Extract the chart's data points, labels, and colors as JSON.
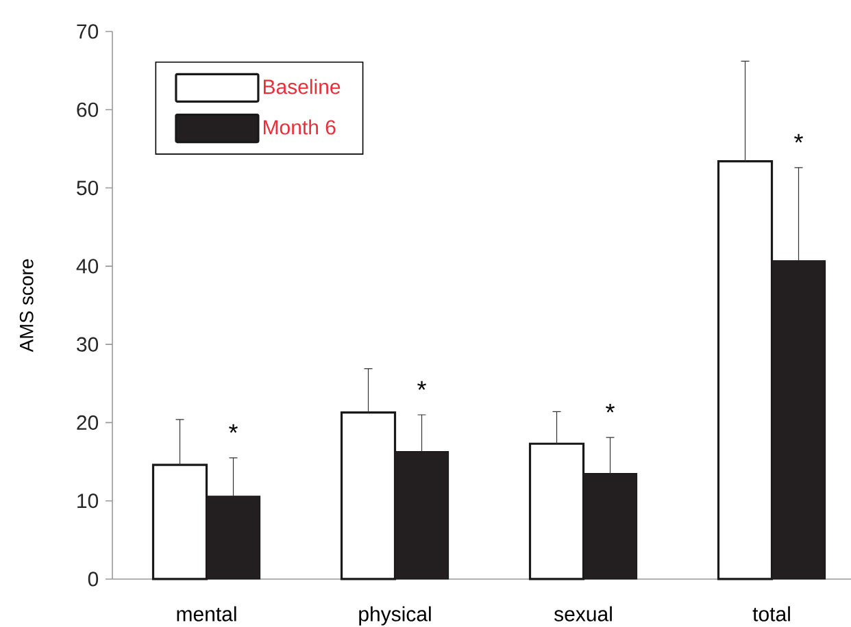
{
  "chart_data": {
    "type": "bar",
    "categories": [
      "mental",
      "physical",
      "sexual",
      "total"
    ],
    "ylabel": "AMS score",
    "ylim": [
      0,
      70
    ],
    "yticks": [
      0,
      10,
      20,
      30,
      40,
      50,
      60,
      70
    ],
    "legend": "top left",
    "grid": false,
    "series": [
      {
        "name": "Baseline",
        "color": "#ffffff",
        "values": [
          14.6,
          21.3,
          17.3,
          53.4
        ],
        "errors": [
          [
            14.6,
            20.4
          ],
          [
            21.3,
            26.9
          ],
          [
            17.3,
            21.4
          ],
          [
            53.4,
            66.2
          ]
        ]
      },
      {
        "name": "Month 6",
        "color": "#231f20",
        "values": [
          10.6,
          16.3,
          13.5,
          40.7
        ],
        "errors": [
          [
            10.6,
            15.5
          ],
          [
            16.3,
            21.0
          ],
          [
            13.5,
            18.1
          ],
          [
            40.7,
            52.6
          ]
        ]
      }
    ],
    "annotations": [
      "*",
      "*",
      "*",
      "*"
    ]
  }
}
